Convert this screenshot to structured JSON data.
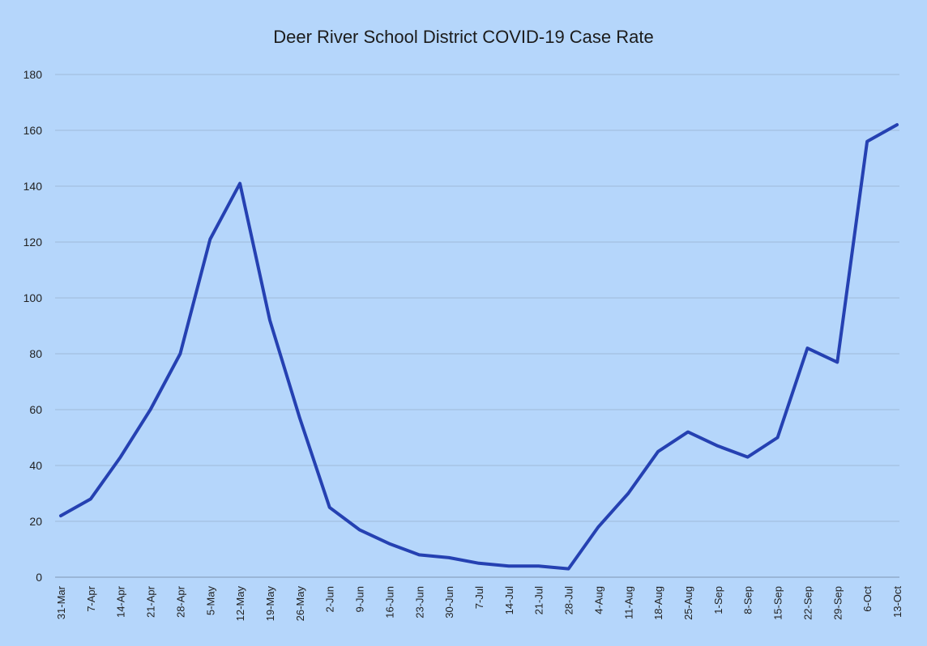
{
  "chart_data": {
    "type": "line",
    "title": "Deer River School District COVID-19 Case Rate",
    "categories": [
      "31-Mar",
      "7-Apr",
      "14-Apr",
      "21-Apr",
      "28-Apr",
      "5-May",
      "12-May",
      "19-May",
      "26-May",
      "2-Jun",
      "9-Jun",
      "16-Jun",
      "23-Jun",
      "30-Jun",
      "7-Jul",
      "14-Jul",
      "21-Jul",
      "28-Jul",
      "4-Aug",
      "11-Aug",
      "18-Aug",
      "25-Aug",
      "1-Sep",
      "8-Sep",
      "15-Sep",
      "22-Sep",
      "29-Sep",
      "6-Oct",
      "13-Oct"
    ],
    "series": [
      {
        "values": [
          22,
          28,
          43,
          60,
          80,
          121,
          141,
          92,
          57,
          25,
          17,
          12,
          8,
          7,
          5,
          4,
          4,
          3,
          18,
          30,
          45,
          52,
          47,
          43,
          50,
          82,
          77,
          156,
          162
        ]
      }
    ],
    "yticks": [
      "0",
      "20",
      "40",
      "60",
      "80",
      "100",
      "120",
      "140",
      "160",
      "180"
    ],
    "ylim": [
      0,
      180
    ],
    "grid": true,
    "legend": "none",
    "colors": {
      "line": "#2541b2",
      "background": "#b5d6fb",
      "grid": "#8fa8c4"
    }
  }
}
